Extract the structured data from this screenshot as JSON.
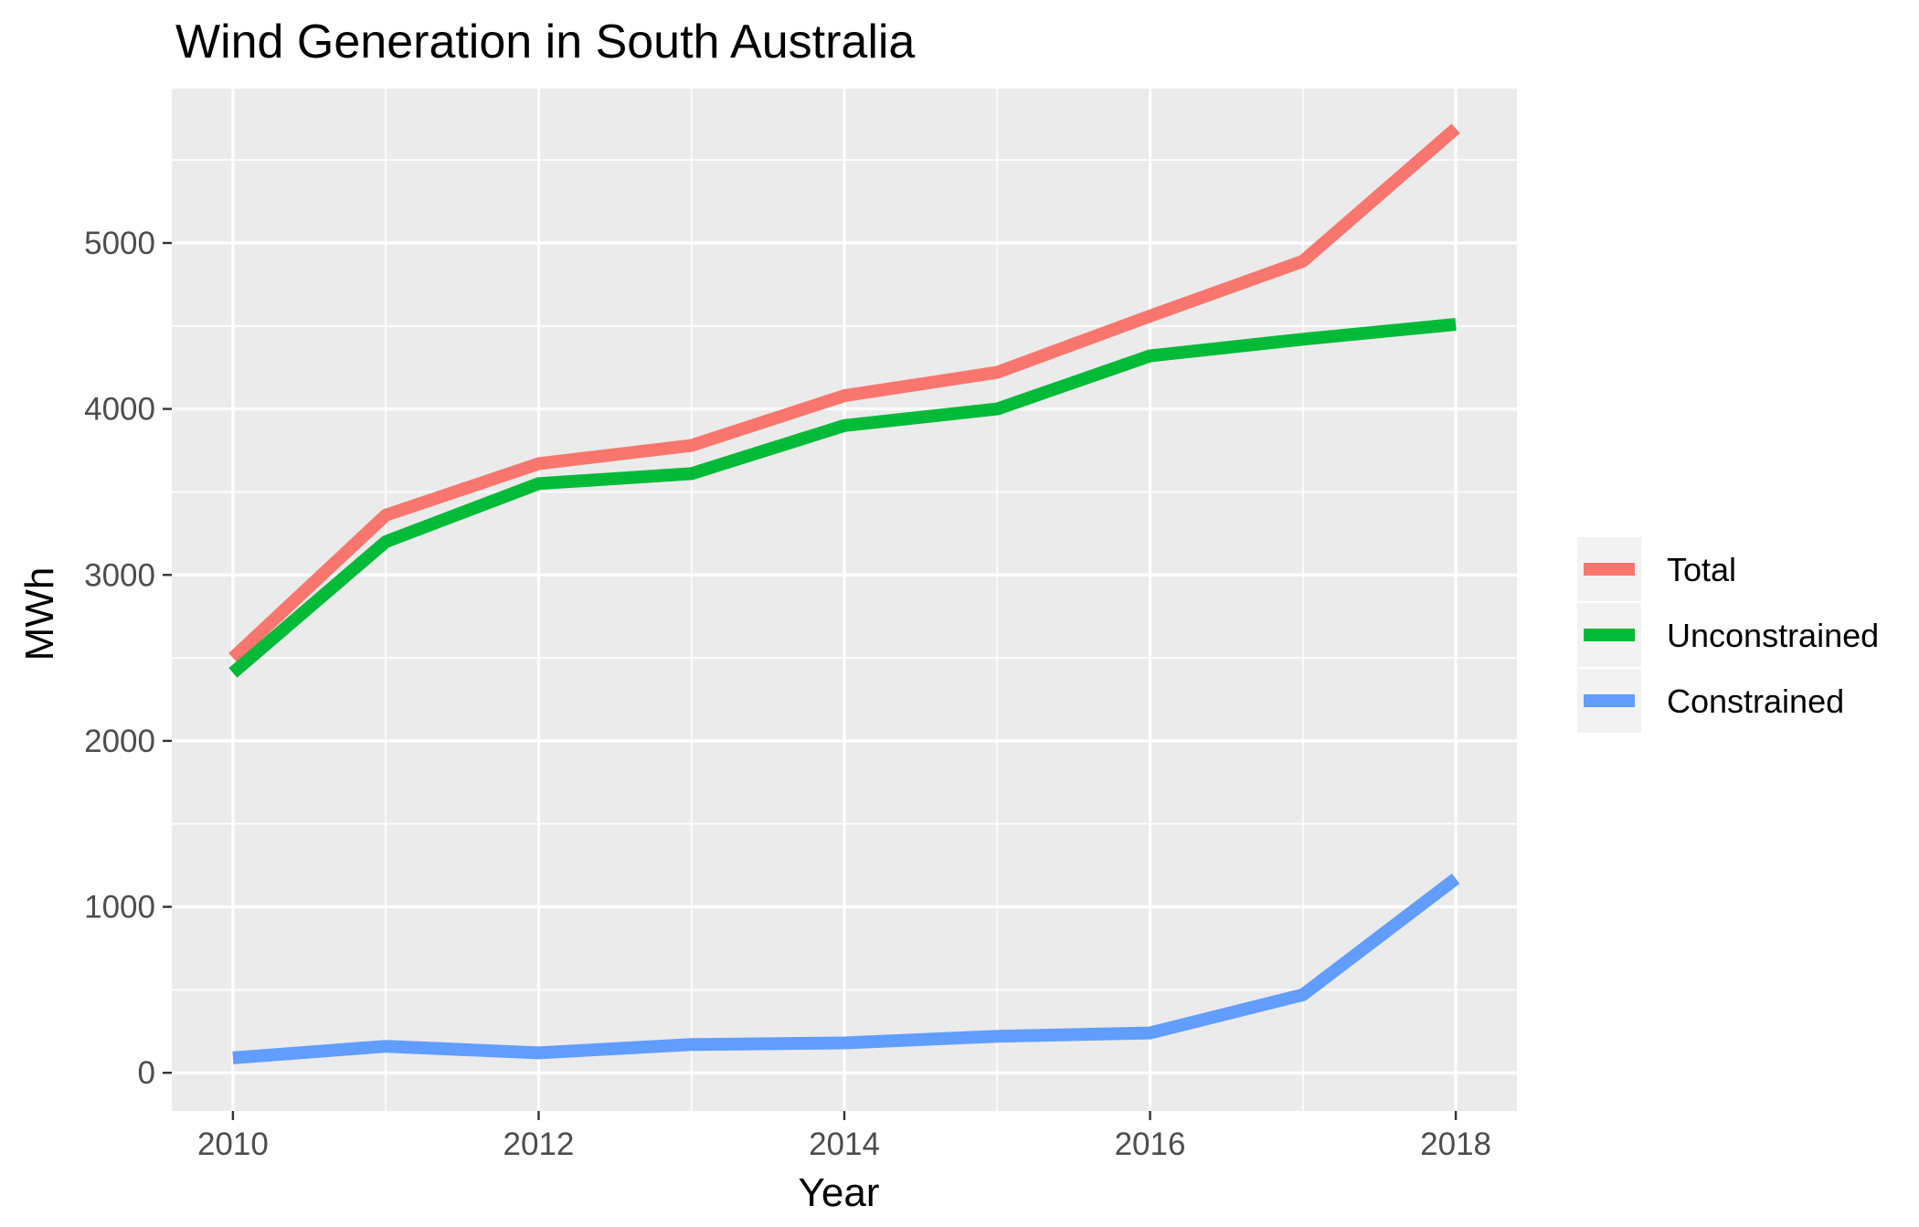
{
  "chart_data": {
    "type": "line",
    "title": "Wind Generation in South Australia",
    "xlabel": "Year",
    "ylabel": "MWh",
    "x": [
      2010,
      2011,
      2012,
      2013,
      2014,
      2015,
      2016,
      2017,
      2018
    ],
    "x_ticks": [
      "2010",
      "2012",
      "2014",
      "2016",
      "2018"
    ],
    "y_ticks": [
      "0",
      "1000",
      "2000",
      "3000",
      "4000",
      "5000"
    ],
    "xlim": [
      2009.6,
      2018.4
    ],
    "ylim": [
      -230,
      5930
    ],
    "grid": true,
    "legend_position": "right",
    "series": [
      {
        "name": "Total",
        "color": "#F8766D",
        "values": [
          2500,
          3360,
          3670,
          3780,
          4080,
          4220,
          4560,
          4890,
          5690
        ]
      },
      {
        "name": "Unconstrained",
        "color": "#00BA38",
        "values": [
          2410,
          3200,
          3550,
          3610,
          3900,
          4000,
          4320,
          4420,
          4510
        ]
      },
      {
        "name": "Constrained",
        "color": "#619CFF",
        "values": [
          90,
          160,
          120,
          170,
          180,
          220,
          240,
          470,
          1170
        ]
      }
    ]
  }
}
